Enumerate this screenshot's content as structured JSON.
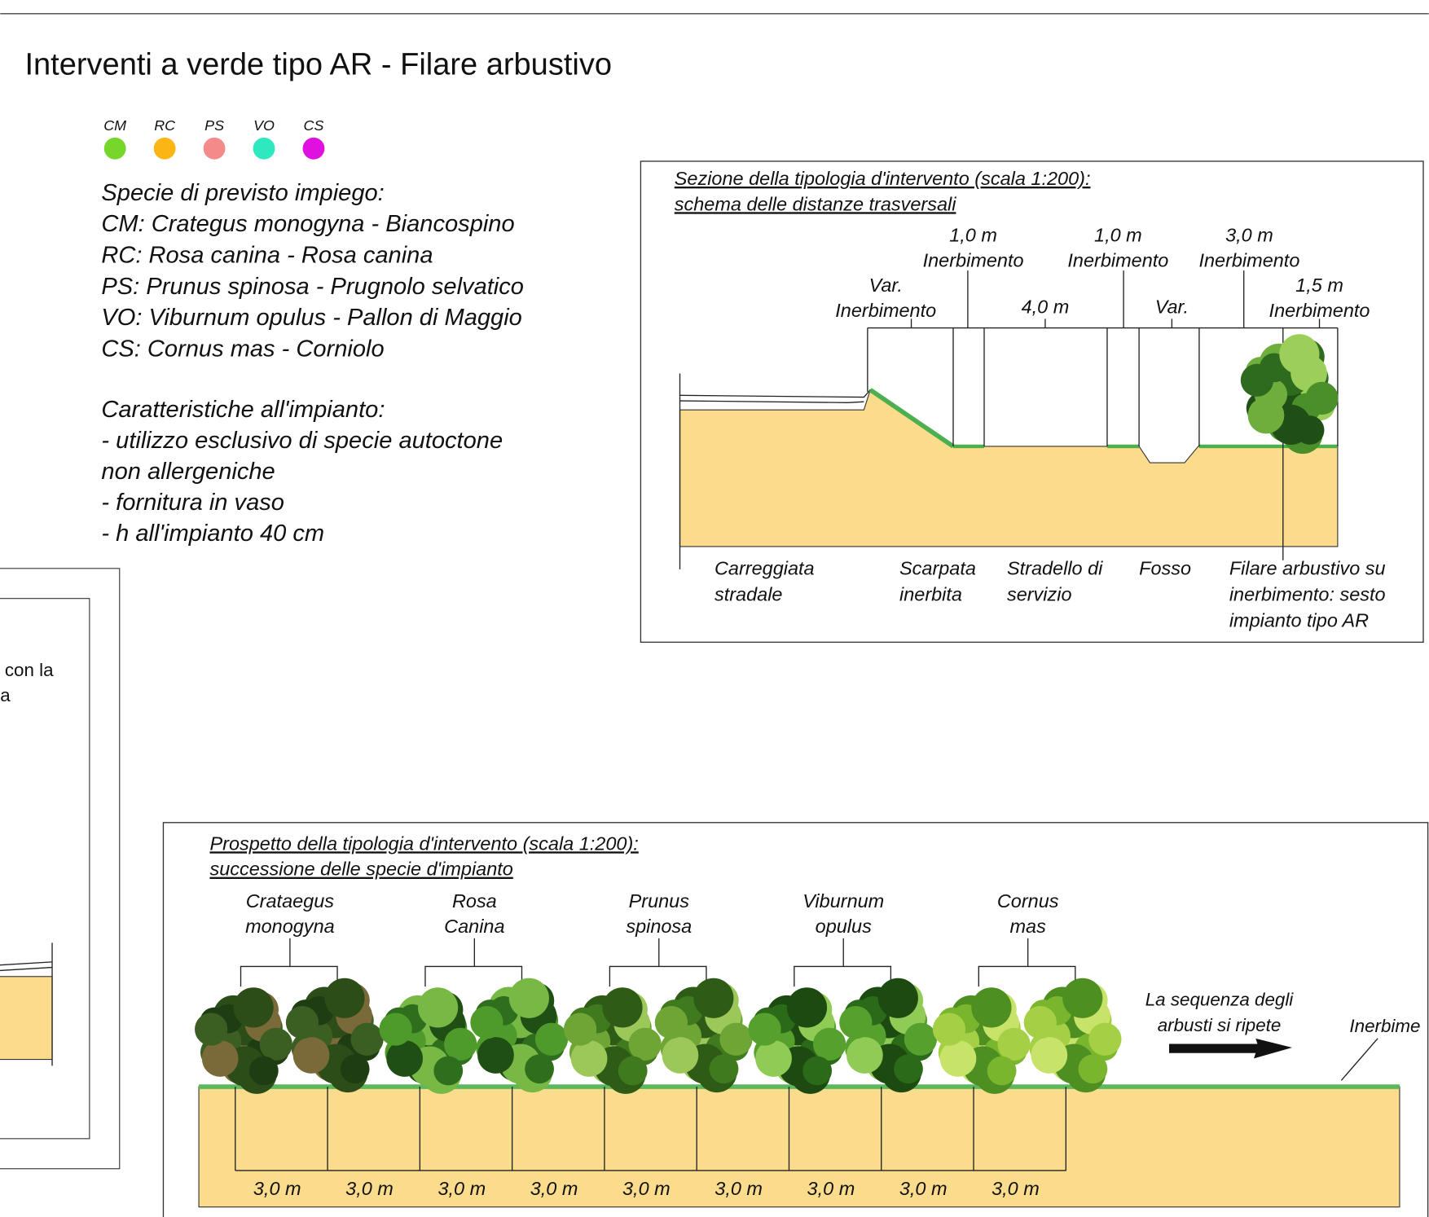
{
  "header": {
    "title": "Interventi a verde tipo AR - Filare arbustivo"
  },
  "legend": {
    "codes": [
      "CM",
      "RC",
      "PS",
      "VO",
      "CS"
    ],
    "colors": [
      "#77d62a",
      "#fbb515",
      "#f48a8a",
      "#2ee8c0",
      "#e010e0"
    ]
  },
  "species": {
    "heading": "Specie di previsto impiego:",
    "lines": [
      "CM: Crategus monogyna - Biancospino",
      "RC: Rosa canina - Rosa canina",
      "PS: Prunus spinosa - Prugnolo selvatico",
      "VO: Viburnum opulus - Pallon di Maggio",
      "CS: Cornus mas - Corniolo"
    ]
  },
  "features": {
    "heading": "Caratteristiche all'impianto:",
    "lines": [
      "- utilizzo esclusivo di specie autoctone",
      "non allergeniche",
      "- fornitura in vaso",
      "- h all'impianto 40 cm"
    ]
  },
  "left_panel": {
    "lines": [
      "con la",
      "a"
    ]
  },
  "section": {
    "title": [
      "Sezione della tipologia d'intervento (scala 1:200):",
      "schema delle distanze trasversali"
    ],
    "dimensions": [
      [
        "Var.",
        "Inerbimento"
      ],
      [
        "1,0 m",
        "Inerbimento"
      ],
      [
        "4,0 m"
      ],
      [
        "1,0 m",
        "Inerbimento"
      ],
      [
        "Var."
      ],
      [
        "3,0 m",
        "Inerbimento"
      ],
      [
        "1,5 m",
        "Inerbimento"
      ]
    ],
    "labels": [
      [
        "Carreggiata",
        "stradale"
      ],
      [
        "Scarpata",
        "inerbita"
      ],
      [
        "Stradello di",
        "servizio"
      ],
      [
        "Fosso"
      ],
      [
        "Filare arbustivo su",
        "inerbimento: sesto",
        "impianto tipo AR"
      ]
    ]
  },
  "elevation": {
    "title": [
      "Prospetto della tipologia d'intervento (scala 1:200):",
      "successione delle specie d'impianto"
    ],
    "species": [
      [
        "Crataegus",
        "monogyna"
      ],
      [
        "Rosa",
        "Canina"
      ],
      [
        "Prunus",
        "spinosa"
      ],
      [
        "Viburnum",
        "opulus"
      ],
      [
        "Cornus",
        "mas"
      ]
    ],
    "note": [
      "La sequenza degli",
      "arbusti si ripete"
    ],
    "grass_label": "Inerbime",
    "spacing": [
      "3,0 m",
      "3,0 m",
      "3,0 m",
      "3,0 m",
      "3,0 m",
      "3,0 m",
      "3,0 m",
      "3,0 m",
      "3,0 m"
    ]
  }
}
